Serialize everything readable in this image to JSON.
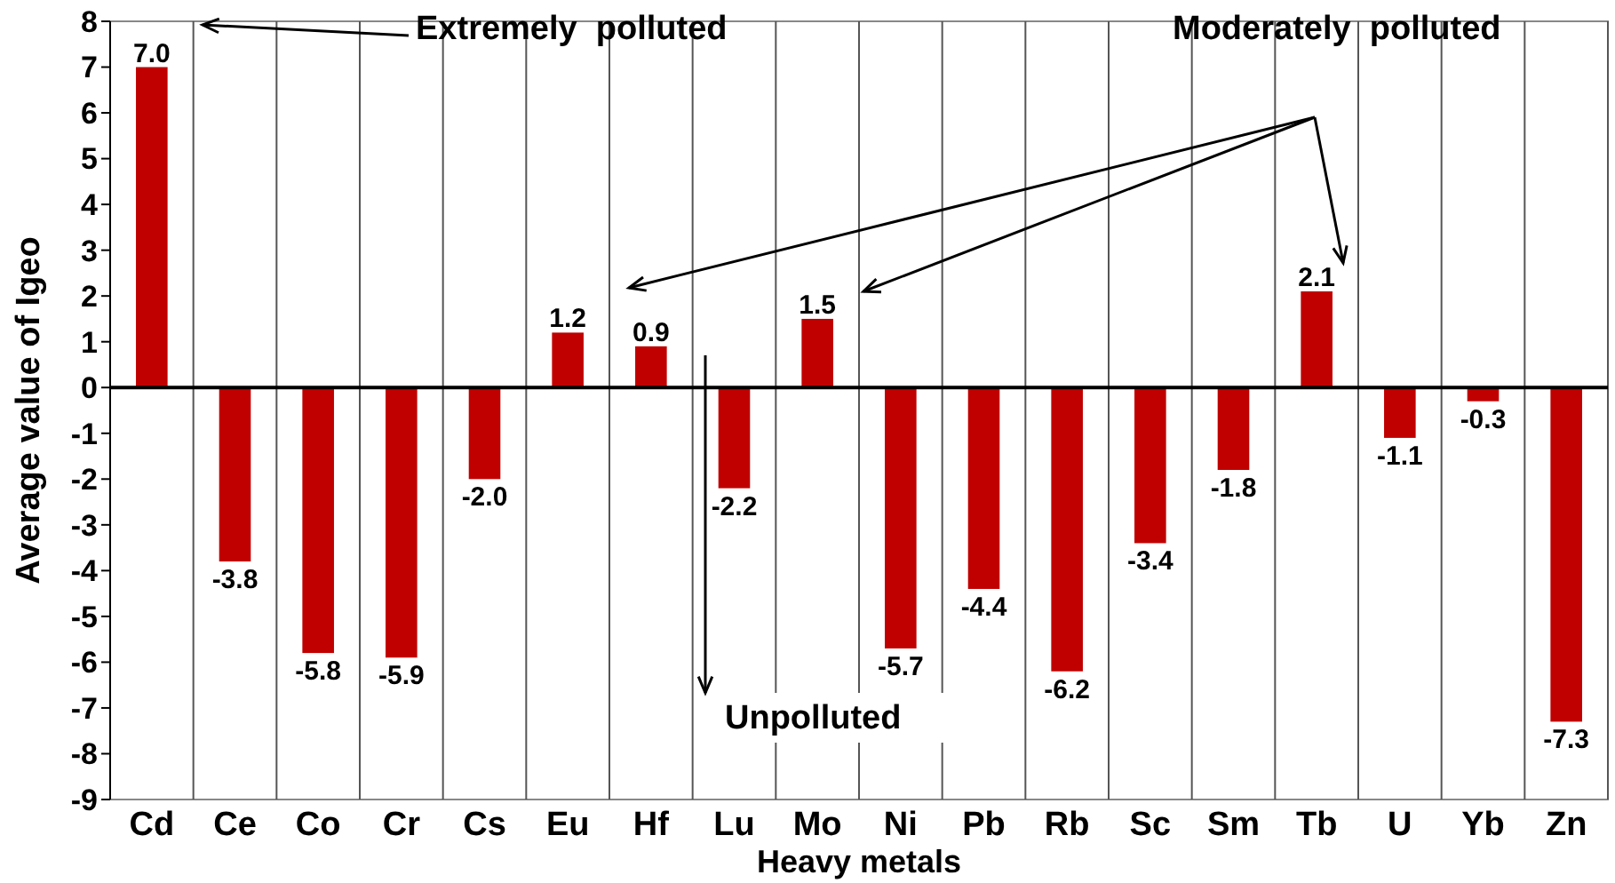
{
  "chart_data": {
    "type": "bar",
    "xlabel": "Heavy metals",
    "ylabel": "Average value of Igeo",
    "categories": [
      "Cd",
      "Ce",
      "Co",
      "Cr",
      "Cs",
      "Eu",
      "Hf",
      "Lu",
      "Mo",
      "Ni",
      "Pb",
      "Rb",
      "Sc",
      "Sm",
      "Tb",
      "U",
      "Yb",
      "Zn"
    ],
    "values": [
      7.0,
      -3.8,
      -5.8,
      -5.9,
      -2.0,
      1.2,
      0.9,
      -2.2,
      1.5,
      -5.7,
      -4.4,
      -6.2,
      -3.4,
      -1.8,
      2.1,
      -1.1,
      -0.3,
      -7.3
    ],
    "color": "#c00000",
    "grid": "x",
    "value_labels": [
      "7.0",
      "-3.8",
      "-5.8",
      "-5.9",
      "-2.0",
      "1.2",
      "0.9",
      "-2.2",
      "1.5",
      "-5.7",
      "-4.4",
      "-6.2",
      "-3.4",
      "-1.8",
      "2.1",
      "-1.1",
      "-0.3",
      "-7.3"
    ],
    "ylim": [
      -9,
      8
    ],
    "yticks": [
      -9,
      -8,
      -7,
      -6,
      -5,
      -4,
      -3,
      -2,
      -1,
      0,
      1,
      2,
      3,
      4,
      5,
      6,
      7,
      8
    ],
    "annotations": [
      "Extremely  polluted",
      "Moderately  polluted",
      "Unpolluted"
    ]
  }
}
